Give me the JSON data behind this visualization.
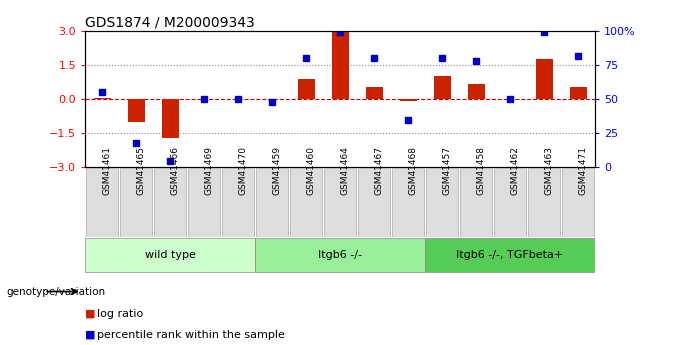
{
  "title": "GDS1874 / M200009343",
  "samples": [
    "GSM41461",
    "GSM41465",
    "GSM41466",
    "GSM41469",
    "GSM41470",
    "GSM41459",
    "GSM41460",
    "GSM41464",
    "GSM41467",
    "GSM41468",
    "GSM41457",
    "GSM41458",
    "GSM41462",
    "GSM41463",
    "GSM41471"
  ],
  "log_ratio": [
    0.05,
    -1.0,
    -1.7,
    0.0,
    0.0,
    0.0,
    0.9,
    3.0,
    0.55,
    -0.08,
    1.0,
    0.65,
    0.0,
    1.75,
    0.55
  ],
  "percentile_rank": [
    55,
    18,
    5,
    50,
    50,
    48,
    80,
    99,
    80,
    35,
    80,
    78,
    50,
    99,
    82
  ],
  "groups": [
    {
      "label": "wild type",
      "start": 0,
      "end": 4,
      "color": "#ccffcc"
    },
    {
      "label": "Itgb6 -/-",
      "start": 5,
      "end": 9,
      "color": "#99ee99"
    },
    {
      "label": "Itgb6 -/-, TGFbeta+",
      "start": 10,
      "end": 14,
      "color": "#55cc55"
    }
  ],
  "ylim_left": [
    -3,
    3
  ],
  "ylim_right": [
    0,
    100
  ],
  "yticks_left": [
    -3,
    -1.5,
    0,
    1.5,
    3
  ],
  "yticks_right": [
    0,
    25,
    50,
    75,
    100
  ],
  "yticklabels_right": [
    "0",
    "25",
    "50",
    "75",
    "100%"
  ],
  "bar_color": "#cc2200",
  "dot_color": "#0000cc",
  "hline_color": "#cc0000",
  "dotted_color": "#888888",
  "bg_color": "#ffffff",
  "tick_bg": "#dddddd",
  "genotype_label": "genotype/variation"
}
